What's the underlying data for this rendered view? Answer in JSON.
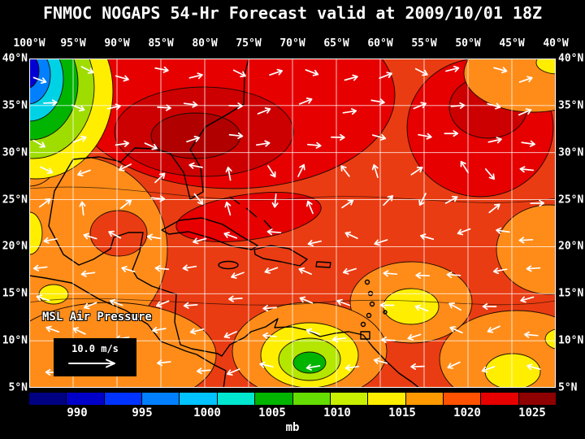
{
  "title": "FNMOC NOGAPS 54-Hr Forecast valid at 2009/10/01 18Z",
  "map": {
    "overlay_label": "MSL Air Pressure",
    "wind_legend_label": "10.0 m/s",
    "lon_labels": [
      "100°W",
      "95°W",
      "90°W",
      "85°W",
      "80°W",
      "75°W",
      "70°W",
      "65°W",
      "60°W",
      "55°W",
      "50°W",
      "45°W",
      "40°W"
    ],
    "lat_labels": [
      "40°N",
      "35°N",
      "30°N",
      "25°N",
      "20°N",
      "15°N",
      "10°N",
      "5°N"
    ]
  },
  "colorbar": {
    "unit_label": "mb",
    "tick_labels": [
      "990",
      "995",
      "1000",
      "1005",
      "1010",
      "1015",
      "1020",
      "1025"
    ],
    "segment_colors": [
      "#000082",
      "#0000c8",
      "#0033ff",
      "#0080ff",
      "#00c3ff",
      "#00e6cf",
      "#00b400",
      "#66dd00",
      "#c8ee00",
      "#ffee00",
      "#ff9900",
      "#ff5200",
      "#e60000",
      "#8f0000"
    ]
  },
  "chart_data": {
    "type": "heatmap",
    "title": "FNMOC NOGAPS 54-Hr Forecast valid at 2009/10/01 18Z",
    "variable": "MSL Air Pressure",
    "unit": "mb",
    "x_ticks": [
      "100°W",
      "95°W",
      "90°W",
      "85°W",
      "80°W",
      "75°W",
      "70°W",
      "65°W",
      "60°W",
      "55°W",
      "50°W",
      "45°W",
      "40°W"
    ],
    "y_ticks": [
      "40°N",
      "35°N",
      "30°N",
      "25°N",
      "20°N",
      "15°N",
      "10°N",
      "5°N"
    ],
    "colorbar_ticks": [
      990,
      995,
      1000,
      1005,
      1010,
      1015,
      1020,
      1025
    ],
    "wind_reference": "10.0 m/s"
  }
}
